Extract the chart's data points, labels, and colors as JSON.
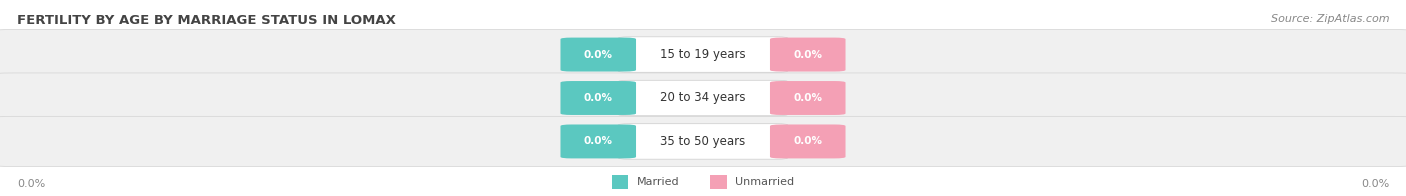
{
  "title": "FERTILITY BY AGE BY MARRIAGE STATUS IN LOMAX",
  "source": "Source: ZipAtlas.com",
  "categories": [
    "15 to 19 years",
    "20 to 34 years",
    "35 to 50 years"
  ],
  "married_values": [
    0.0,
    0.0,
    0.0
  ],
  "unmarried_values": [
    0.0,
    0.0,
    0.0
  ],
  "married_color": "#5bc8c0",
  "unmarried_color": "#f4a0b5",
  "row_bg_color": "#f0f0f0",
  "row_edge_color": "#d8d8d8",
  "title_fontsize": 9.5,
  "source_fontsize": 8,
  "cat_fontsize": 8.5,
  "value_fontsize": 7.5,
  "axis_label_fontsize": 8,
  "axis_label_left": "0.0%",
  "axis_label_right": "0.0%",
  "legend_married": "Married",
  "legend_unmarried": "Unmarried",
  "fig_width": 14.06,
  "fig_height": 1.96,
  "dpi": 100
}
